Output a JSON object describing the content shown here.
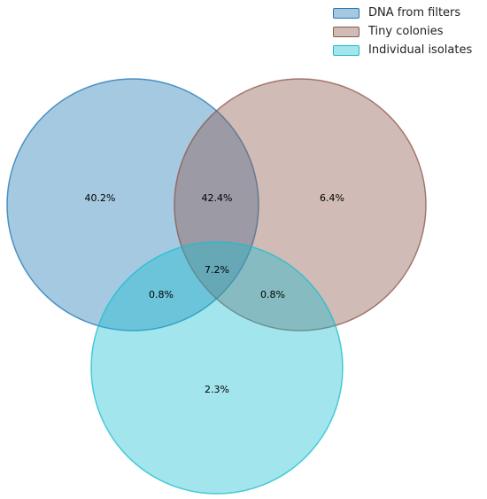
{
  "chart_data": {
    "type": "venn",
    "title": "",
    "sets": [
      {
        "name": "DNA from filters",
        "fill": "#1f77b4",
        "edge": "#1f77b4"
      },
      {
        "name": "Tiny colonies",
        "fill": "#8c564b",
        "edge": "#8c564b"
      },
      {
        "name": "Individual isolates",
        "fill": "#17becf",
        "edge": "#17becf"
      }
    ],
    "regions": [
      {
        "sets": [
          "DNA from filters"
        ],
        "label": "40.2%",
        "value": 40.2
      },
      {
        "sets": [
          "DNA from filters",
          "Tiny colonies"
        ],
        "label": "42.4%",
        "value": 42.4
      },
      {
        "sets": [
          "Tiny colonies"
        ],
        "label": "6.4%",
        "value": 6.4
      },
      {
        "sets": [
          "DNA from filters",
          "Tiny colonies",
          "Individual isolates"
        ],
        "label": "7.2%",
        "value": 7.2
      },
      {
        "sets": [
          "DNA from filters",
          "Individual isolates"
        ],
        "label": "0.8%",
        "value": 0.8
      },
      {
        "sets": [
          "Tiny colonies",
          "Individual isolates"
        ],
        "label": "0.8%",
        "value": 0.8
      },
      {
        "sets": [
          "Individual isolates"
        ],
        "label": "2.3%",
        "value": 2.3
      }
    ],
    "legend_position": "top-right"
  }
}
